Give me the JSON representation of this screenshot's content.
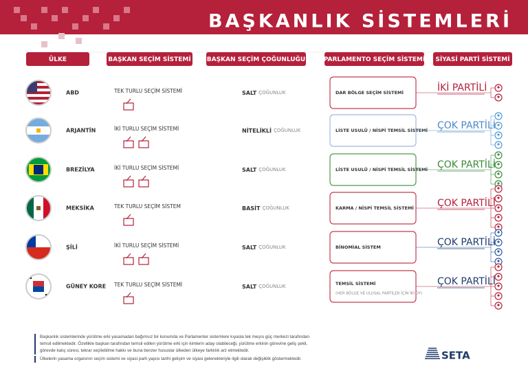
{
  "header": {
    "title": "BAŞKANLIK SİSTEMLERİ"
  },
  "columns": [
    "ÜLKE",
    "BAŞKAN SEÇİM SİSTEMİ",
    "BAŞKAN SEÇİM ÇOĞUNLUĞU",
    "PARLAMENTO SEÇİM SİSTEMİ",
    "SİYASİ PARTİ SİSTEMİ"
  ],
  "rows": [
    {
      "country": "ABD",
      "election": "TEK TURLU SEÇİM SİSTEMİ",
      "majority": "SALT",
      "majority_word": "ÇOĞUNLUK",
      "parliament": "DAR BÖLGE SEÇİM SİSTEMİ",
      "party": "İKİ PARTİLİ"
    },
    {
      "country": "ARJANTİN",
      "election": "İKİ TURLU SEÇİM SİSTEMİ",
      "majority": "NİTELİKLİ",
      "majority_word": "ÇOĞUNLUK",
      "parliament": "LİSTE USULÜ / NİSPİ TEMSİL SİSTEMİ",
      "party": "ÇOK PARTİLİ"
    },
    {
      "country": "BREZİLYA",
      "election": "İKİ TURLU SEÇİM SİSTEMİ",
      "majority": "SALT",
      "majority_word": "ÇOĞUNLUK",
      "parliament": "LİSTE USULÜ / NİSPİ TEMSİL SİSTEMİ",
      "party": "ÇOK PARTİLİ"
    },
    {
      "country": "MEKSİKA",
      "election": "TEK TURLU SEÇİM SİSTEM",
      "majority": "BASİT",
      "majority_word": "ÇOĞUNLUK",
      "parliament": "KARMA / NİSPİ TEMSİL SİSTEMİ",
      "party": "ÇOK PARTİLİ"
    },
    {
      "country": "ŞİLİ",
      "election": "İKİ TURLU SEÇİM SİSTEMİ",
      "majority": "SALT",
      "majority_word": "ÇOĞUNLUK",
      "parliament": "BİNOMİAL SİSTEM",
      "party": "ÇOK PARTİLİ"
    },
    {
      "country": "GÜNEY KORE",
      "election": "TEK TURLU SEÇİM SİSTEMİ",
      "majority": "SALT",
      "majority_word": "ÇOĞUNLUK",
      "parliament": "TEMSİL SİSTEMİ",
      "parliament_note": "(HER BÖLGE VE ULUSAL PARTİLER İÇİN İKİ OY)",
      "party": "ÇOK PARTİLİ"
    }
  ],
  "footer": {
    "paragraphs": [
      "Başkanlık sistemlerinde yürütme erki yasamadan bağımsız bir konumda ve Parlamenter sistemlere kıyasla tek meşru güç merkezi tarafından temsil edilmektedir. Özellikle başkan tarafından temsil edilen yürütme erki için kimlerin aday olabileceği, yürütme erkinin görevine geliş şekli, görevde kalış süresi, tekrar seçilebilme hakkı ve buna benzer hususlar ülkeden ülkeye farklılık arz etmektedir.",
      "Ülkelerin yasama organının seçim sistemi ve siyasi parti yapısı tarihi gelişim ve siyasi gelenekleriyle ilgili olarak değişiklik göstermektedir."
    ],
    "logo": "SETA"
  }
}
